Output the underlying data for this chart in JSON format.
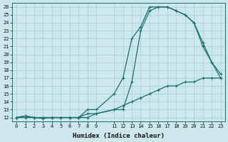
{
  "xlabel": "Humidex (Indice chaleur)",
  "bg_color": "#cce8ec",
  "grid_color": "#aacfd5",
  "line_color": "#1a7070",
  "xlim": [
    0,
    23
  ],
  "ylim": [
    12,
    26
  ],
  "xtick_vals": [
    0,
    1,
    2,
    3,
    4,
    5,
    6,
    7,
    8,
    9,
    11,
    12,
    13,
    14,
    15,
    16,
    17,
    18,
    19,
    20,
    21,
    22,
    23
  ],
  "ytick_vals": [
    12,
    13,
    14,
    15,
    16,
    17,
    18,
    19,
    20,
    21,
    22,
    23,
    24,
    25,
    26
  ],
  "curve1_x": [
    0,
    1,
    2,
    3,
    4,
    5,
    6,
    7,
    8,
    9,
    11,
    12,
    13,
    14,
    15,
    16,
    17,
    18,
    19,
    20,
    21,
    22,
    23
  ],
  "curve1_y": [
    12,
    12.2,
    12,
    11.9,
    12,
    12,
    12,
    12,
    12,
    12.5,
    13,
    13.5,
    14,
    14.5,
    15,
    15.5,
    16,
    16,
    16.5,
    16.5,
    17,
    17,
    17
  ],
  "curve2_x": [
    0,
    1,
    2,
    3,
    4,
    5,
    6,
    7,
    8,
    9,
    11,
    12,
    13,
    14,
    15,
    16,
    17,
    18,
    19,
    20,
    21,
    22,
    23
  ],
  "curve2_y": [
    12,
    12,
    12,
    12,
    12,
    12,
    12,
    12,
    12.5,
    12.5,
    13,
    13,
    16.5,
    23,
    25.5,
    26,
    26,
    25.5,
    25,
    24,
    21,
    19,
    17
  ],
  "curve3_x": [
    0,
    1,
    2,
    3,
    4,
    5,
    6,
    7,
    8,
    9,
    11,
    12,
    13,
    14,
    15,
    16,
    17,
    18,
    19,
    20,
    21,
    22,
    23
  ],
  "curve3_y": [
    12,
    12.2,
    12,
    12,
    12,
    12,
    12,
    12,
    13,
    13,
    15,
    17,
    22,
    23.5,
    26,
    26,
    26,
    25.5,
    25,
    24,
    21.5,
    19,
    17.5
  ]
}
